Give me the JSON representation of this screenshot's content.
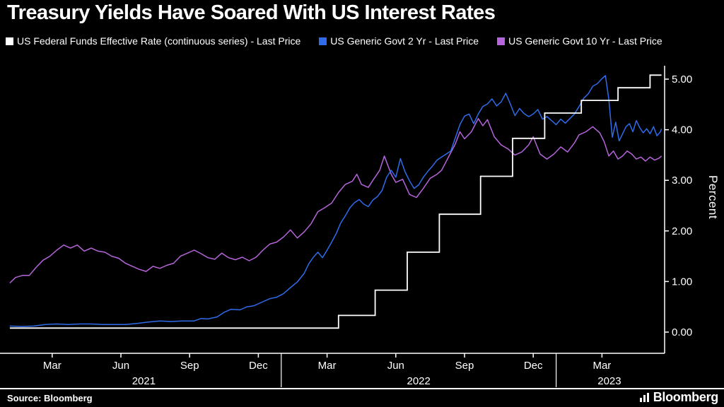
{
  "header": {
    "title": "Treasury Yields Have Soared With US Interest Rates"
  },
  "footer": {
    "source": "Source: Bloomberg",
    "brand": "Bloomberg"
  },
  "chart_data": {
    "type": "line",
    "title": "Treasury Yields Have Soared With US Interest Rates",
    "xlabel": "",
    "ylabel": "Percent",
    "ylim": [
      0,
      5.35
    ],
    "x_unit": "months since Jan 2021",
    "xlim_months": [
      0,
      28.65
    ],
    "grid": false,
    "legend_position": "top",
    "y_ticks": [
      {
        "value": 0,
        "label": "0.00"
      },
      {
        "value": 1,
        "label": "1.00"
      },
      {
        "value": 2,
        "label": "2.00"
      },
      {
        "value": 3,
        "label": "3.00"
      },
      {
        "value": 4,
        "label": "4.00"
      },
      {
        "value": 5,
        "label": "5.00"
      }
    ],
    "x_month_ticks": [
      {
        "m": 2,
        "label": "Mar"
      },
      {
        "m": 5,
        "label": "Jun"
      },
      {
        "m": 8,
        "label": "Sep"
      },
      {
        "m": 11,
        "label": "Dec"
      },
      {
        "m": 14,
        "label": "Mar"
      },
      {
        "m": 17,
        "label": "Jun"
      },
      {
        "m": 20,
        "label": "Sep"
      },
      {
        "m": 23,
        "label": "Dec"
      },
      {
        "m": 26,
        "label": "Mar"
      }
    ],
    "year_labels": [
      {
        "label": "2021",
        "from": 0,
        "to": 12
      },
      {
        "label": "2022",
        "from": 12,
        "to": 24
      },
      {
        "label": "2023",
        "from": 24,
        "to": 28.65
      }
    ],
    "year_separators_month": [
      12,
      24
    ],
    "series": [
      {
        "name": "US Federal Funds Effective Rate (continuous series) - Last Price",
        "color": "#ffffff",
        "step": true,
        "points": [
          [
            0.15,
            0.08
          ],
          [
            14.5,
            0.08
          ],
          [
            14.5,
            0.33
          ],
          [
            16.1,
            0.33
          ],
          [
            16.1,
            0.83
          ],
          [
            17.5,
            0.83
          ],
          [
            17.5,
            1.58
          ],
          [
            18.9,
            1.58
          ],
          [
            18.9,
            2.33
          ],
          [
            20.7,
            2.33
          ],
          [
            20.7,
            3.08
          ],
          [
            22.1,
            3.08
          ],
          [
            22.1,
            3.83
          ],
          [
            23.5,
            3.83
          ],
          [
            23.5,
            4.33
          ],
          [
            25.1,
            4.33
          ],
          [
            25.1,
            4.58
          ],
          [
            26.7,
            4.58
          ],
          [
            26.7,
            4.83
          ],
          [
            28.1,
            4.83
          ],
          [
            28.1,
            5.08
          ],
          [
            28.6,
            5.08
          ]
        ]
      },
      {
        "name": "US Generic Govt 2 Yr - Last Price",
        "color": "#2f6beb",
        "step": false,
        "points": [
          [
            0.15,
            0.12
          ],
          [
            0.7,
            0.11
          ],
          [
            1.2,
            0.12
          ],
          [
            1.7,
            0.15
          ],
          [
            2.2,
            0.16
          ],
          [
            2.7,
            0.15
          ],
          [
            3.2,
            0.16
          ],
          [
            3.7,
            0.16
          ],
          [
            4.2,
            0.15
          ],
          [
            4.7,
            0.15
          ],
          [
            5.2,
            0.15
          ],
          [
            5.7,
            0.17
          ],
          [
            6.2,
            0.2
          ],
          [
            6.7,
            0.22
          ],
          [
            7.2,
            0.21
          ],
          [
            7.7,
            0.22
          ],
          [
            8.2,
            0.22
          ],
          [
            8.5,
            0.27
          ],
          [
            8.8,
            0.26
          ],
          [
            9.2,
            0.3
          ],
          [
            9.5,
            0.39
          ],
          [
            9.8,
            0.45
          ],
          [
            10.2,
            0.44
          ],
          [
            10.5,
            0.5
          ],
          [
            10.8,
            0.52
          ],
          [
            11.2,
            0.6
          ],
          [
            11.5,
            0.66
          ],
          [
            11.8,
            0.69
          ],
          [
            12.1,
            0.76
          ],
          [
            12.4,
            0.88
          ],
          [
            12.7,
            0.99
          ],
          [
            13.0,
            1.16
          ],
          [
            13.2,
            1.35
          ],
          [
            13.4,
            1.48
          ],
          [
            13.6,
            1.58
          ],
          [
            13.8,
            1.47
          ],
          [
            14.0,
            1.62
          ],
          [
            14.2,
            1.78
          ],
          [
            14.4,
            1.95
          ],
          [
            14.6,
            2.16
          ],
          [
            14.8,
            2.3
          ],
          [
            15.0,
            2.46
          ],
          [
            15.2,
            2.56
          ],
          [
            15.4,
            2.62
          ],
          [
            15.6,
            2.53
          ],
          [
            15.8,
            2.48
          ],
          [
            16.0,
            2.61
          ],
          [
            16.2,
            2.68
          ],
          [
            16.4,
            2.8
          ],
          [
            16.6,
            3.06
          ],
          [
            16.8,
            3.2
          ],
          [
            17.0,
            3.06
          ],
          [
            17.2,
            3.43
          ],
          [
            17.4,
            3.17
          ],
          [
            17.6,
            2.99
          ],
          [
            17.8,
            2.84
          ],
          [
            18.0,
            2.91
          ],
          [
            18.2,
            3.06
          ],
          [
            18.4,
            3.18
          ],
          [
            18.6,
            3.28
          ],
          [
            18.8,
            3.4
          ],
          [
            19.0,
            3.46
          ],
          [
            19.2,
            3.52
          ],
          [
            19.4,
            3.58
          ],
          [
            19.6,
            3.84
          ],
          [
            19.8,
            4.1
          ],
          [
            20.0,
            4.27
          ],
          [
            20.2,
            4.31
          ],
          [
            20.4,
            4.12
          ],
          [
            20.6,
            4.31
          ],
          [
            20.8,
            4.46
          ],
          [
            21.0,
            4.51
          ],
          [
            21.2,
            4.61
          ],
          [
            21.4,
            4.47
          ],
          [
            21.6,
            4.55
          ],
          [
            21.8,
            4.72
          ],
          [
            22.0,
            4.51
          ],
          [
            22.2,
            4.28
          ],
          [
            22.4,
            4.42
          ],
          [
            22.6,
            4.32
          ],
          [
            22.8,
            4.26
          ],
          [
            23.0,
            4.31
          ],
          [
            23.2,
            4.4
          ],
          [
            23.4,
            4.21
          ],
          [
            23.6,
            4.26
          ],
          [
            23.8,
            4.18
          ],
          [
            24.0,
            4.1
          ],
          [
            24.2,
            4.21
          ],
          [
            24.4,
            4.13
          ],
          [
            24.6,
            4.22
          ],
          [
            24.8,
            4.31
          ],
          [
            25.0,
            4.46
          ],
          [
            25.2,
            4.62
          ],
          [
            25.4,
            4.71
          ],
          [
            25.6,
            4.86
          ],
          [
            25.8,
            4.91
          ],
          [
            26.0,
            5.01
          ],
          [
            26.15,
            5.07
          ],
          [
            26.3,
            4.6
          ],
          [
            26.45,
            3.85
          ],
          [
            26.6,
            4.15
          ],
          [
            26.75,
            3.78
          ],
          [
            26.9,
            3.92
          ],
          [
            27.05,
            4.06
          ],
          [
            27.2,
            4.12
          ],
          [
            27.35,
            3.96
          ],
          [
            27.5,
            4.18
          ],
          [
            27.65,
            4.04
          ],
          [
            27.8,
            3.94
          ],
          [
            27.95,
            4.02
          ],
          [
            28.1,
            3.92
          ],
          [
            28.25,
            4.06
          ],
          [
            28.4,
            3.88
          ],
          [
            28.55,
            3.96
          ],
          [
            28.6,
            4.02
          ]
        ]
      },
      {
        "name": "US Generic Govt 10 Yr - Last Price",
        "color": "#b664db",
        "step": false,
        "points": [
          [
            0.15,
            0.97
          ],
          [
            0.4,
            1.08
          ],
          [
            0.7,
            1.12
          ],
          [
            1.0,
            1.12
          ],
          [
            1.3,
            1.28
          ],
          [
            1.6,
            1.42
          ],
          [
            1.9,
            1.5
          ],
          [
            2.2,
            1.62
          ],
          [
            2.5,
            1.72
          ],
          [
            2.8,
            1.66
          ],
          [
            3.1,
            1.72
          ],
          [
            3.4,
            1.6
          ],
          [
            3.7,
            1.66
          ],
          [
            4.0,
            1.6
          ],
          [
            4.3,
            1.58
          ],
          [
            4.6,
            1.5
          ],
          [
            4.9,
            1.46
          ],
          [
            5.2,
            1.36
          ],
          [
            5.5,
            1.3
          ],
          [
            5.8,
            1.24
          ],
          [
            6.1,
            1.2
          ],
          [
            6.4,
            1.3
          ],
          [
            6.7,
            1.26
          ],
          [
            7.0,
            1.32
          ],
          [
            7.3,
            1.36
          ],
          [
            7.6,
            1.5
          ],
          [
            7.9,
            1.56
          ],
          [
            8.2,
            1.62
          ],
          [
            8.5,
            1.55
          ],
          [
            8.8,
            1.47
          ],
          [
            9.1,
            1.44
          ],
          [
            9.4,
            1.56
          ],
          [
            9.7,
            1.47
          ],
          [
            10.0,
            1.43
          ],
          [
            10.3,
            1.48
          ],
          [
            10.6,
            1.41
          ],
          [
            10.9,
            1.48
          ],
          [
            11.2,
            1.62
          ],
          [
            11.5,
            1.74
          ],
          [
            11.8,
            1.78
          ],
          [
            12.1,
            1.88
          ],
          [
            12.4,
            2.02
          ],
          [
            12.7,
            1.86
          ],
          [
            13.0,
            1.98
          ],
          [
            13.3,
            2.14
          ],
          [
            13.6,
            2.38
          ],
          [
            13.9,
            2.46
          ],
          [
            14.2,
            2.55
          ],
          [
            14.5,
            2.76
          ],
          [
            14.8,
            2.92
          ],
          [
            15.1,
            2.98
          ],
          [
            15.3,
            3.12
          ],
          [
            15.5,
            2.92
          ],
          [
            15.8,
            2.86
          ],
          [
            16.0,
            3.0
          ],
          [
            16.3,
            3.2
          ],
          [
            16.5,
            3.48
          ],
          [
            16.8,
            3.12
          ],
          [
            17.0,
            2.96
          ],
          [
            17.3,
            3.02
          ],
          [
            17.6,
            2.72
          ],
          [
            17.9,
            2.66
          ],
          [
            18.2,
            2.84
          ],
          [
            18.5,
            3.04
          ],
          [
            18.8,
            3.12
          ],
          [
            19.0,
            3.2
          ],
          [
            19.3,
            3.46
          ],
          [
            19.6,
            3.72
          ],
          [
            19.8,
            3.96
          ],
          [
            20.0,
            3.82
          ],
          [
            20.3,
            3.96
          ],
          [
            20.6,
            4.22
          ],
          [
            20.8,
            4.08
          ],
          [
            21.0,
            4.2
          ],
          [
            21.3,
            3.86
          ],
          [
            21.6,
            3.7
          ],
          [
            21.9,
            3.62
          ],
          [
            22.2,
            3.5
          ],
          [
            22.5,
            3.56
          ],
          [
            22.8,
            3.7
          ],
          [
            23.0,
            3.86
          ],
          [
            23.3,
            3.52
          ],
          [
            23.6,
            3.42
          ],
          [
            23.9,
            3.52
          ],
          [
            24.2,
            3.66
          ],
          [
            24.5,
            3.56
          ],
          [
            24.8,
            3.74
          ],
          [
            25.0,
            3.9
          ],
          [
            25.3,
            3.96
          ],
          [
            25.6,
            4.06
          ],
          [
            25.9,
            3.94
          ],
          [
            26.1,
            3.76
          ],
          [
            26.3,
            3.48
          ],
          [
            26.5,
            3.58
          ],
          [
            26.7,
            3.42
          ],
          [
            26.9,
            3.48
          ],
          [
            27.1,
            3.58
          ],
          [
            27.3,
            3.52
          ],
          [
            27.5,
            3.42
          ],
          [
            27.7,
            3.46
          ],
          [
            27.9,
            3.38
          ],
          [
            28.1,
            3.46
          ],
          [
            28.3,
            3.4
          ],
          [
            28.5,
            3.44
          ],
          [
            28.6,
            3.48
          ]
        ]
      }
    ]
  }
}
